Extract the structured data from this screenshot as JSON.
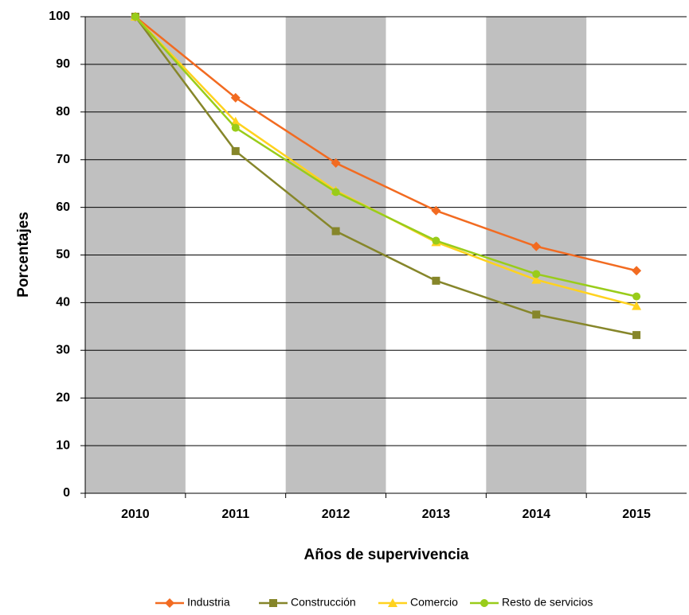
{
  "chart_data": {
    "type": "line",
    "x_label": "Años de supervivencia",
    "y_label": "Porcentajes",
    "categories": [
      "2010",
      "2011",
      "2012",
      "2013",
      "2014",
      "2015"
    ],
    "series": [
      {
        "name": "Industria",
        "color": "#f26b21",
        "marker": "diamond",
        "values": [
          100,
          83,
          69.3,
          59.3,
          51.8,
          46.7
        ]
      },
      {
        "name": "Construcción",
        "color": "#86862a",
        "marker": "square",
        "values": [
          100,
          71.8,
          55,
          44.6,
          37.5,
          33.2
        ]
      },
      {
        "name": "Comercio",
        "color": "#ffd21f",
        "marker": "triangle",
        "values": [
          100,
          78,
          63.5,
          52.7,
          44.8,
          39.3
        ]
      },
      {
        "name": "Resto de servicios",
        "color": "#99cc1a",
        "marker": "circle",
        "values": [
          100,
          76.7,
          63.2,
          53,
          46,
          41.3
        ]
      }
    ],
    "ylim": [
      0,
      100
    ],
    "yticks": [
      0,
      10,
      20,
      30,
      40,
      50,
      60,
      70,
      80,
      90,
      100
    ],
    "grid": true,
    "band_color": "#c0c0c0",
    "legend": "bottom"
  }
}
